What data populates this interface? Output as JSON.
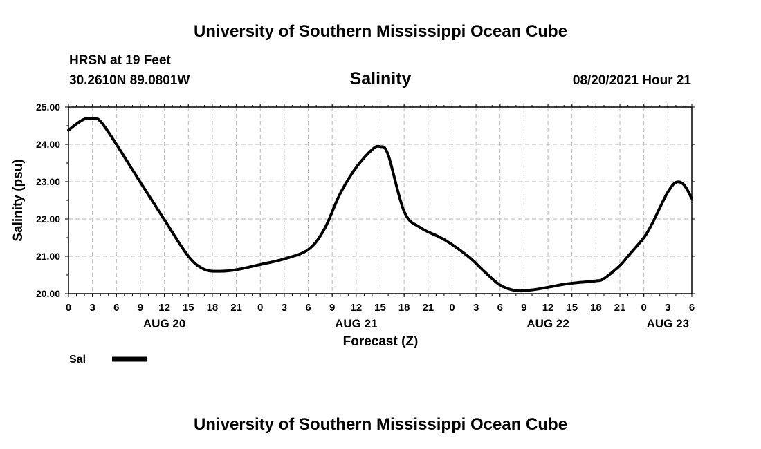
{
  "header": {
    "title": "University of Southern Mississippi Ocean Cube",
    "station": "HRSN at 19 Feet",
    "coords": "30.2610N  89.0801W",
    "datetime": "08/20/2021 Hour 21"
  },
  "footer": {
    "title": "University of Southern Mississippi Ocean Cube"
  },
  "chart_data": {
    "type": "line",
    "title": "Salinity",
    "xlabel": "Forecast (Z)",
    "ylabel": "Salinity (psu)",
    "ylim": [
      20.0,
      25.0
    ],
    "xlim": [
      0,
      78
    ],
    "x_unit": "hours since 2021-08-20 00Z",
    "y_ticks": [
      "20.00",
      "21.00",
      "22.00",
      "23.00",
      "24.00",
      "25.00"
    ],
    "y_tick_values": [
      20,
      21,
      22,
      23,
      24,
      25
    ],
    "x_tick_labels": [
      "0",
      "3",
      "6",
      "9",
      "12",
      "15",
      "18",
      "21",
      "0",
      "3",
      "6",
      "9",
      "12",
      "15",
      "18",
      "21",
      "0",
      "3",
      "6",
      "9",
      "12",
      "15",
      "18",
      "21",
      "0",
      "3",
      "6"
    ],
    "day_labels": [
      {
        "label": "AUG 20",
        "hour": 12
      },
      {
        "label": "AUG 21",
        "hour": 36
      },
      {
        "label": "AUG 22",
        "hour": 60
      },
      {
        "label": "AUG 23",
        "hour": 75
      }
    ],
    "grid": true,
    "legend": {
      "position": "bottom-left",
      "entries": [
        {
          "label": "Sal",
          "color": "#000000"
        }
      ]
    },
    "series": [
      {
        "name": "Sal",
        "color": "#000000",
        "x": [
          0,
          1,
          2,
          3,
          4,
          6,
          9,
          12,
          15,
          17,
          19,
          21,
          24,
          27,
          30,
          32,
          34,
          36,
          38,
          39,
          40,
          42,
          44,
          47,
          50,
          52,
          54,
          56,
          58,
          60,
          62,
          64,
          66,
          67,
          69,
          70,
          72,
          73,
          74,
          75,
          76,
          77,
          78
        ],
        "values": [
          24.38,
          24.55,
          24.68,
          24.7,
          24.62,
          24.0,
          22.98,
          21.98,
          21.0,
          20.65,
          20.6,
          20.64,
          20.78,
          20.93,
          21.18,
          21.72,
          22.68,
          23.38,
          23.86,
          23.94,
          23.72,
          22.2,
          21.77,
          21.45,
          21.0,
          20.6,
          20.23,
          20.08,
          20.1,
          20.17,
          20.25,
          20.3,
          20.34,
          20.4,
          20.75,
          21.0,
          21.5,
          21.86,
          22.3,
          22.72,
          22.98,
          22.92,
          22.55
        ]
      }
    ]
  }
}
